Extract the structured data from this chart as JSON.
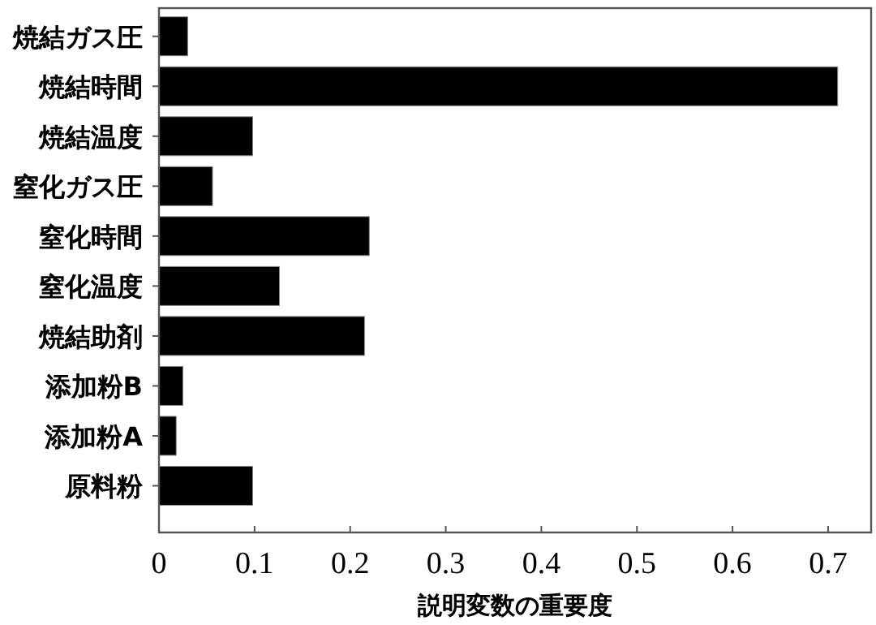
{
  "chart_data": {
    "type": "bar",
    "orientation": "horizontal",
    "xlabel": "説明変数の重要度",
    "categories": [
      "焼結ガス圧",
      "焼結時間",
      "焼結温度",
      "窒化ガス圧",
      "窒化時間",
      "窒化温度",
      "焼結助剤",
      "添加粉B",
      "添加粉A",
      "原料粉"
    ],
    "values": [
      0.03,
      0.71,
      0.098,
      0.056,
      0.22,
      0.126,
      0.215,
      0.025,
      0.018,
      0.098
    ],
    "color": "#000000",
    "xlim": [
      0,
      0.745
    ],
    "xticks": [
      0,
      0.1,
      0.2,
      0.3,
      0.4,
      0.5,
      0.6,
      0.7
    ],
    "grid": false
  }
}
